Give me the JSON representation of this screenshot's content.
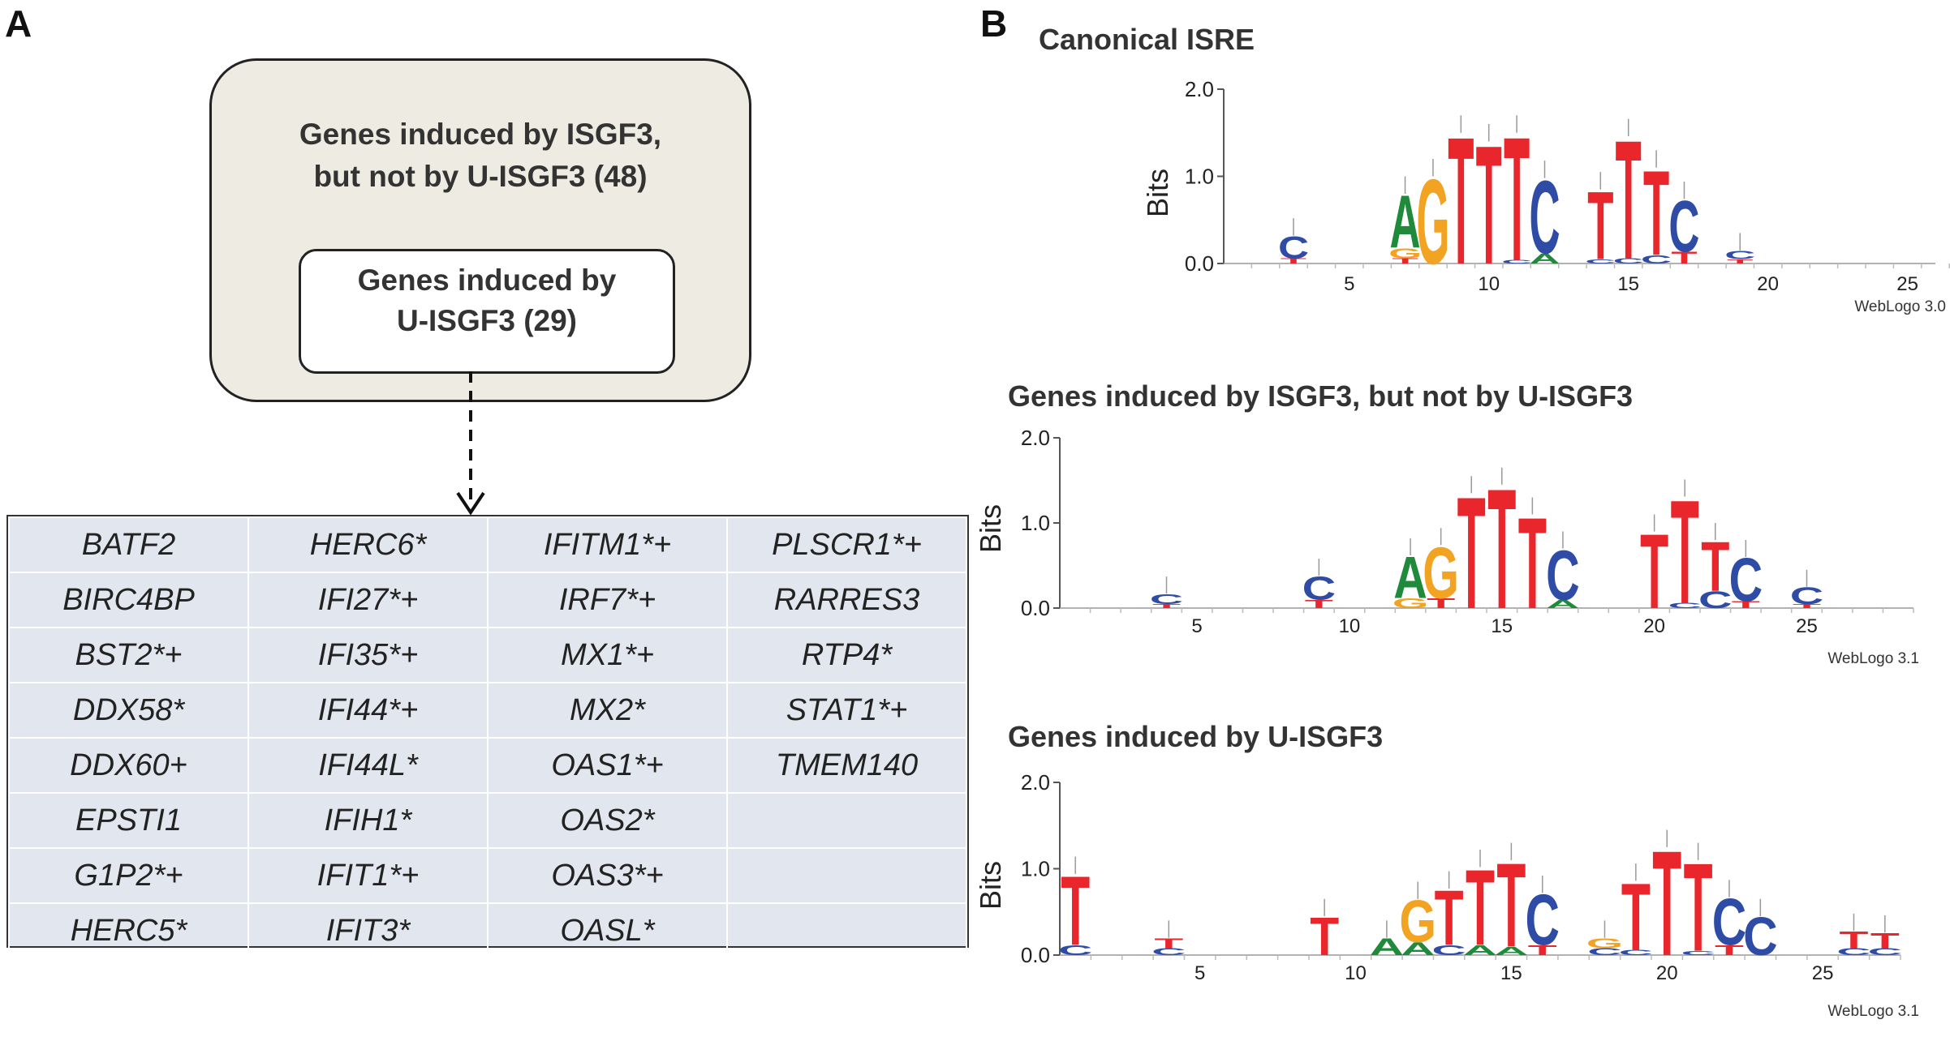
{
  "panel_a": {
    "label": "A",
    "outer_title_line1": "Genes induced by ISGF3,",
    "outer_title_line2": "but not by U-ISGF3 (48)",
    "inner_title_line1": "Genes induced by",
    "inner_title_line2": "U-ISGF3 (29)",
    "gene_table": [
      [
        "BATF2",
        "HERC6*",
        "IFITM1*+",
        "PLSCR1*+"
      ],
      [
        "BIRC4BP",
        "IFI27*+",
        "IRF7*+",
        "RARRES3"
      ],
      [
        "BST2*+",
        "IFI35*+",
        "MX1*+",
        "RTP4*"
      ],
      [
        "DDX58*",
        "IFI44*+",
        "MX2*",
        "STAT1*+"
      ],
      [
        "DDX60+",
        "IFI44L*",
        "OAS1*+",
        "TMEM140"
      ],
      [
        "EPSTI1",
        "IFIH1*",
        "OAS2*",
        ""
      ],
      [
        "G1P2*+",
        "IFIT1*+",
        "OAS3*+",
        ""
      ],
      [
        "HERC5*",
        "IFIT3*",
        "OASL*",
        ""
      ]
    ]
  },
  "panel_b": {
    "label": "B",
    "colors": {
      "T": "#e8262b",
      "C": "#2e4ca6",
      "A": "#1f8a3a",
      "G": "#f2a322"
    }
  },
  "chart_data": [
    {
      "type": "sequence_logo",
      "title": "Canonical ISRE",
      "ylabel": "Bits",
      "yticks": [
        "0.0",
        "1.0",
        "2.0"
      ],
      "ylim": [
        0,
        2.0
      ],
      "xlim": [
        0.5,
        26
      ],
      "xticks": [
        5,
        10,
        15,
        20,
        25
      ],
      "footer": "WebLogo 3.0",
      "letters": [
        {
          "pos": 3,
          "stack": [
            [
              "T",
              0.06
            ],
            [
              "C",
              0.26
            ]
          ]
        },
        {
          "pos": 7,
          "stack": [
            [
              "T",
              0.06
            ],
            [
              "G",
              0.12
            ],
            [
              "A",
              0.62
            ]
          ]
        },
        {
          "pos": 8,
          "stack": [
            [
              "G",
              1.0
            ]
          ]
        },
        {
          "pos": 9,
          "stack": [
            [
              "T",
              1.5
            ]
          ]
        },
        {
          "pos": 10,
          "stack": [
            [
              "T",
              1.4
            ]
          ]
        },
        {
          "pos": 11,
          "stack": [
            [
              "C",
              0.04
            ],
            [
              "T",
              1.46
            ]
          ]
        },
        {
          "pos": 12,
          "stack": [
            [
              "A",
              0.12
            ],
            [
              "C",
              0.86
            ]
          ]
        },
        {
          "pos": 14,
          "stack": [
            [
              "C",
              0.05
            ],
            [
              "T",
              0.8
            ]
          ]
        },
        {
          "pos": 15,
          "stack": [
            [
              "C",
              0.06
            ],
            [
              "T",
              1.4
            ]
          ]
        },
        {
          "pos": 16,
          "stack": [
            [
              "C",
              0.1
            ],
            [
              "T",
              1.0
            ]
          ]
        },
        {
          "pos": 17,
          "stack": [
            [
              "T",
              0.14
            ],
            [
              "C",
              0.6
            ]
          ]
        },
        {
          "pos": 19,
          "stack": [
            [
              "T",
              0.05
            ],
            [
              "C",
              0.1
            ]
          ]
        }
      ]
    },
    {
      "type": "sequence_logo",
      "title": "Genes induced by ISGF3, but not by U-ISGF3",
      "ylabel": "Bits",
      "yticks": [
        "0.0",
        "1.0",
        "2.0"
      ],
      "ylim": [
        0,
        2.0
      ],
      "xlim": [
        0.5,
        28.5
      ],
      "xticks": [
        5,
        10,
        15,
        20,
        25
      ],
      "footer": "WebLogo 3.1",
      "letters": [
        {
          "pos": 4,
          "stack": [
            [
              "T",
              0.05
            ],
            [
              "C",
              0.12
            ]
          ]
        },
        {
          "pos": 9,
          "stack": [
            [
              "T",
              0.1
            ],
            [
              "C",
              0.28
            ]
          ]
        },
        {
          "pos": 12,
          "stack": [
            [
              "G",
              0.12
            ],
            [
              "A",
              0.5
            ]
          ]
        },
        {
          "pos": 13,
          "stack": [
            [
              "T",
              0.12
            ],
            [
              "G",
              0.62
            ]
          ]
        },
        {
          "pos": 14,
          "stack": [
            [
              "T",
              1.35
            ]
          ]
        },
        {
          "pos": 15,
          "stack": [
            [
              "T",
              1.45
            ]
          ]
        },
        {
          "pos": 16,
          "stack": [
            [
              "T",
              1.1
            ]
          ]
        },
        {
          "pos": 17,
          "stack": [
            [
              "A",
              0.1
            ],
            [
              "C",
              0.6
            ]
          ]
        },
        {
          "pos": 20,
          "stack": [
            [
              "T",
              0.9
            ]
          ]
        },
        {
          "pos": 21,
          "stack": [
            [
              "C",
              0.06
            ],
            [
              "T",
              1.25
            ]
          ]
        },
        {
          "pos": 22,
          "stack": [
            [
              "C",
              0.2
            ],
            [
              "T",
              0.6
            ]
          ]
        },
        {
          "pos": 23,
          "stack": [
            [
              "T",
              0.08
            ],
            [
              "C",
              0.52
            ]
          ]
        },
        {
          "pos": 25,
          "stack": [
            [
              "T",
              0.05
            ],
            [
              "C",
              0.2
            ]
          ]
        }
      ]
    },
    {
      "type": "sequence_logo",
      "title": "Genes induced by U-ISGF3",
      "ylabel": "Bits",
      "yticks": [
        "0.0",
        "1.0",
        "2.0"
      ],
      "ylim": [
        0,
        2.0
      ],
      "xlim": [
        0.5,
        27.5
      ],
      "xticks": [
        5,
        10,
        15,
        20,
        25
      ],
      "footer": "WebLogo 3.1",
      "letters": [
        {
          "pos": 1,
          "stack": [
            [
              "C",
              0.12
            ],
            [
              "T",
              0.82
            ]
          ]
        },
        {
          "pos": 4,
          "stack": [
            [
              "C",
              0.08
            ],
            [
              "T",
              0.12
            ]
          ]
        },
        {
          "pos": 9,
          "stack": [
            [
              "T",
              0.45
            ]
          ]
        },
        {
          "pos": 11,
          "stack": [
            [
              "A",
              0.2
            ]
          ]
        },
        {
          "pos": 12,
          "stack": [
            [
              "A",
              0.15
            ],
            [
              "G",
              0.5
            ]
          ]
        },
        {
          "pos": 13,
          "stack": [
            [
              "C",
              0.12
            ],
            [
              "T",
              0.65
            ]
          ]
        },
        {
          "pos": 14,
          "stack": [
            [
              "A",
              0.12
            ],
            [
              "T",
              0.9
            ]
          ]
        },
        {
          "pos": 15,
          "stack": [
            [
              "A",
              0.1
            ],
            [
              "T",
              1.0
            ]
          ]
        },
        {
          "pos": 16,
          "stack": [
            [
              "T",
              0.12
            ],
            [
              "C",
              0.6
            ]
          ]
        },
        {
          "pos": 18,
          "stack": [
            [
              "C",
              0.08
            ],
            [
              "G",
              0.12
            ]
          ]
        },
        {
          "pos": 19,
          "stack": [
            [
              "C",
              0.06
            ],
            [
              "T",
              0.8
            ]
          ]
        },
        {
          "pos": 20,
          "stack": [
            [
              "T",
              1.25
            ]
          ]
        },
        {
          "pos": 21,
          "stack": [
            [
              "C",
              0.05
            ],
            [
              "T",
              1.05
            ]
          ]
        },
        {
          "pos": 22,
          "stack": [
            [
              "T",
              0.12
            ],
            [
              "C",
              0.55
            ]
          ]
        },
        {
          "pos": 23,
          "stack": [
            [
              "C",
              0.45
            ]
          ]
        },
        {
          "pos": 26,
          "stack": [
            [
              "C",
              0.08
            ],
            [
              "T",
              0.2
            ]
          ]
        },
        {
          "pos": 27,
          "stack": [
            [
              "C",
              0.08
            ],
            [
              "T",
              0.18
            ]
          ]
        }
      ]
    }
  ]
}
